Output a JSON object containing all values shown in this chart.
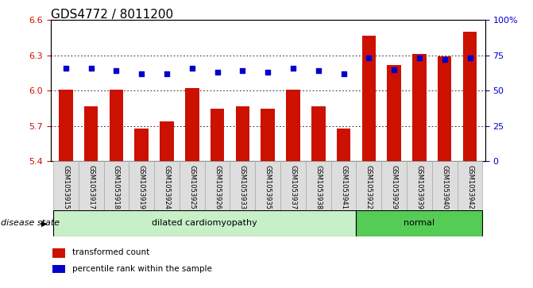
{
  "title": "GDS4772 / 8011200",
  "samples": [
    "GSM1053915",
    "GSM1053917",
    "GSM1053918",
    "GSM1053919",
    "GSM1053924",
    "GSM1053925",
    "GSM1053926",
    "GSM1053933",
    "GSM1053935",
    "GSM1053937",
    "GSM1053938",
    "GSM1053941",
    "GSM1053922",
    "GSM1053929",
    "GSM1053939",
    "GSM1053940",
    "GSM1053942"
  ],
  "bar_values": [
    6.01,
    5.87,
    6.01,
    5.68,
    5.74,
    6.02,
    5.85,
    5.87,
    5.85,
    6.01,
    5.87,
    5.68,
    6.47,
    6.22,
    6.31,
    6.29,
    6.5
  ],
  "percentile_values": [
    66,
    66,
    64,
    62,
    62,
    66,
    63,
    64,
    63,
    66,
    64,
    62,
    73,
    65,
    73,
    72,
    73
  ],
  "group_labels": [
    "dilated cardiomyopathy",
    "normal"
  ],
  "group_counts": [
    12,
    5
  ],
  "ymin": 5.4,
  "ymax": 6.6,
  "yticks": [
    5.4,
    5.7,
    6.0,
    6.3,
    6.6
  ],
  "y2ticks": [
    0,
    25,
    50,
    75,
    100
  ],
  "bar_color": "#cc1100",
  "dot_color": "#0000cc",
  "dilated_color": "#c8f0c8",
  "normal_color": "#55cc55",
  "tick_label_bg": "#dddddd",
  "title_fontsize": 11,
  "tick_fontsize": 8,
  "label_fontsize": 8,
  "legend_bar_label": "transformed count",
  "legend_dot_label": "percentile rank within the sample",
  "disease_state_label": "disease state"
}
